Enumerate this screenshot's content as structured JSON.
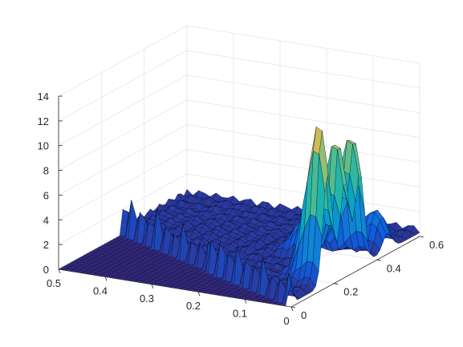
{
  "chart_data": {
    "type": "surface",
    "title": "",
    "xlabel": "",
    "ylabel": "",
    "zlabel": "",
    "xlim": [
      0,
      0.5
    ],
    "ylim": [
      0,
      0.6
    ],
    "zlim": [
      0,
      14
    ],
    "grid": true,
    "colormap": "parula",
    "x_ticks": [
      "0",
      "0.1",
      "0.2",
      "0.3",
      "0.4",
      "0.5"
    ],
    "y_ticks": [
      "0",
      "0.2",
      "0.4",
      "0.6"
    ],
    "z_ticks": [
      "0",
      "2",
      "4",
      "6",
      "8",
      "10",
      "12",
      "14"
    ],
    "surface": {
      "domain": "y >= 0.6 * x (triangle below diagonal is flat at 0)",
      "ridge_height_along_diagonal": 2.5,
      "peaks": [
        {
          "x": 0.02,
          "y": 0.17,
          "z": 12.5
        },
        {
          "x": 0.02,
          "y": 0.25,
          "z": 10.5
        },
        {
          "x": 0.02,
          "y": 0.32,
          "z": 10.5
        },
        {
          "x": 0.03,
          "y": 0.45,
          "z": 3.0
        },
        {
          "x": 0.12,
          "y": 0.32,
          "z": 3.0
        }
      ]
    }
  }
}
